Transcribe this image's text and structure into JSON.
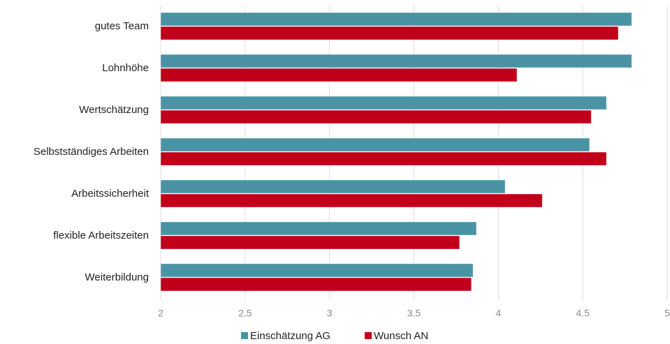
{
  "chart_data": {
    "type": "hbar",
    "categories": [
      "gutes Team",
      "Lohnhöhe",
      "Wertschätzung",
      "Selbstständiges Arbeiten",
      "Arbeitssicherheit",
      "flexible Arbeitszeiten",
      "Weiterbildung"
    ],
    "series": [
      {
        "name": "Einschätzung AG",
        "color": "#4a93a4",
        "values": [
          4.79,
          4.79,
          4.64,
          4.54,
          4.04,
          3.87,
          3.85
        ]
      },
      {
        "name": "Wunsch AN",
        "color": "#c0001a",
        "values": [
          4.71,
          4.11,
          4.55,
          4.64,
          4.26,
          3.77,
          3.84
        ]
      }
    ],
    "xlim": [
      2,
      5
    ],
    "xticks": [
      2,
      2.5,
      3,
      3.5,
      4,
      4.5,
      5
    ],
    "grid": true,
    "legend": "bottom"
  }
}
